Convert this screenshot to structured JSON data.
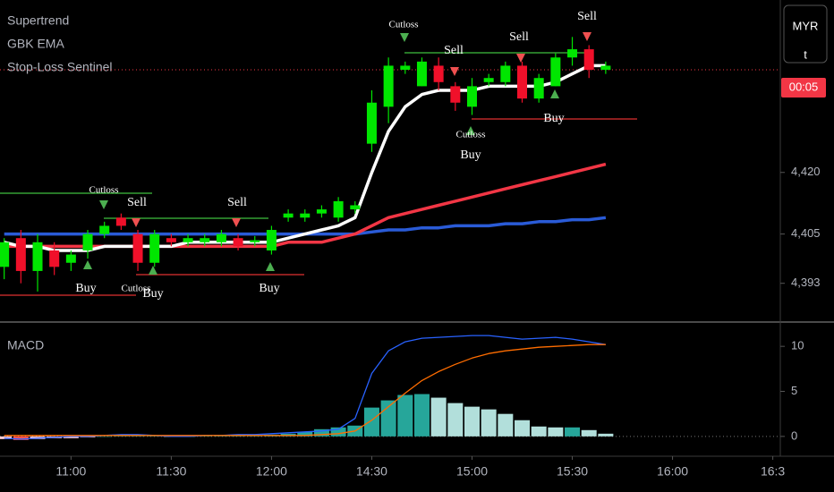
{
  "chart_data": [
    {
      "type": "candlestick",
      "legend": [
        "Supertrend",
        "GBK EMA",
        "Stop-Loss Sentinel"
      ],
      "open": [
        4397,
        4404,
        4396,
        4401,
        4398,
        4401,
        4405,
        4409,
        4405,
        4398,
        4404,
        4403,
        4403,
        4403,
        4404,
        4403,
        4401,
        4409,
        4409,
        4410,
        4409,
        4411,
        4427,
        4436,
        4445,
        4441,
        4446,
        4441,
        4436,
        4442,
        4442,
        4446,
        4438,
        4441,
        4448,
        4450,
        4445
      ],
      "close": [
        4403,
        4396,
        4403,
        4397,
        4400,
        4405,
        4407,
        4407,
        4398,
        4405,
        4403,
        4404,
        4404,
        4405,
        4402,
        4403.5,
        4406,
        4410,
        4410,
        4411,
        4413,
        4412,
        4437,
        4446,
        4446,
        4447,
        4442,
        4437,
        4441,
        4443,
        4446,
        4438,
        4443,
        4448,
        4450,
        4445,
        4446
      ],
      "high": [
        4404,
        4406,
        4405,
        4403,
        4401,
        4406,
        4408,
        4410,
        4406,
        4406,
        4405,
        4405,
        4405,
        4406,
        4405,
        4404.5,
        4407,
        4411,
        4411,
        4412,
        4414,
        4413,
        4440,
        4448,
        4447,
        4448,
        4448,
        4442,
        4443,
        4444,
        4447,
        4447,
        4444,
        4449,
        4453,
        4451,
        4447
      ],
      "low": [
        4394,
        4393,
        4391,
        4395,
        4396,
        4399,
        4404,
        4406,
        4396,
        4397,
        4402,
        4402,
        4402,
        4402,
        4401,
        4402,
        4400,
        4408,
        4408,
        4409,
        4408,
        4410,
        4425,
        4432,
        4444,
        4441,
        4440,
        4435,
        4434,
        4441,
        4441,
        4437,
        4437,
        4441,
        4446,
        4443,
        4444
      ],
      "series": [
        {
          "color": "#ffffff",
          "values": [
            4403,
            4402,
            4402,
            4401,
            4401,
            4401,
            4402,
            4402,
            4402,
            4402,
            4402,
            4403,
            4403,
            4403,
            4403,
            4403,
            4403,
            4404,
            4405,
            4406,
            4407,
            4409,
            4420,
            4430,
            4436,
            4439,
            4440,
            4440,
            4440,
            4441,
            4441,
            4441,
            4441,
            4442,
            4444,
            4446,
            4446
          ]
        },
        {
          "color": "#f23645",
          "values": [
            4402,
            4402,
            4402,
            4402,
            4402,
            4402,
            4402,
            4402,
            4402,
            4402,
            4402,
            4402,
            4402,
            4402,
            4402,
            4402,
            4402,
            4403,
            4403,
            4403,
            4404,
            4405,
            4407,
            4409,
            4410,
            4411,
            4412,
            4413,
            4414,
            4415,
            4416,
            4417,
            4418,
            4419,
            4420,
            4421,
            4422
          ]
        },
        {
          "color": "#2a5bd7",
          "values": [
            4405,
            4405,
            4405,
            4405,
            4405,
            4405,
            4405,
            4405,
            4405,
            4405,
            4405,
            4405,
            4405,
            4405,
            4405,
            4405,
            4405,
            4405,
            4405,
            4405,
            4405,
            4405,
            4405.5,
            4406,
            4406,
            4406.5,
            4406.5,
            4407,
            4407,
            4407,
            4407.5,
            4407.5,
            4408,
            4408,
            4408.5,
            4408.5,
            4409
          ]
        }
      ],
      "up_color": "#00e600",
      "down_color": "#f0102a",
      "price_line": 4445,
      "currency": "MYR",
      "currency_sub": "t",
      "countdown": "00:05",
      "annotations": [
        "Cutloss",
        "Sell",
        "Sell",
        "Sell",
        "Cutloss",
        "Buy",
        "Buy",
        "Cutloss",
        "Sell",
        "Sell",
        "Buy",
        "Cutloss",
        "Buy",
        "Buy"
      ],
      "xlim": [
        -0.25,
        46.45
      ],
      "ylim": [
        4384,
        4462
      ],
      "yticks": [
        {
          "value": 4420,
          "label": "4,420"
        },
        {
          "value": 4405,
          "label": "4,405"
        },
        {
          "value": 4393,
          "label": "4,393"
        }
      ]
    },
    {
      "type": "macd",
      "title": "MACD",
      "histogram": [
        -0.3,
        -0.4,
        -0.3,
        -0.2,
        -0.2,
        -0.1,
        0,
        0.1,
        0.1,
        0.1,
        0,
        0,
        0.1,
        0.1,
        0.1,
        0.1,
        0.2,
        0.3,
        0.5,
        0.8,
        1.0,
        1.2,
        3.2,
        4.0,
        4.6,
        4.7,
        4.3,
        3.7,
        3.3,
        3.0,
        2.5,
        1.8,
        1.1,
        1.0,
        1.0,
        0.7,
        0.3
      ],
      "colors": {
        "rising": "#26a69a",
        "falling": "#b2dfdb",
        "negative_rising": "#ffcdd2",
        "negative_falling": "#ff5252"
      },
      "series": [
        {
          "color": "#2962ff",
          "values": [
            -0.2,
            -0.3,
            -0.2,
            -0.1,
            0,
            0,
            0.1,
            0.2,
            0.2,
            0.1,
            0,
            0,
            0.1,
            0.1,
            0.2,
            0.2,
            0.3,
            0.4,
            0.5,
            0.6,
            0.8,
            2,
            7,
            9.5,
            10.5,
            10.9,
            11,
            11.1,
            11.2,
            11.2,
            11,
            10.8,
            10.9,
            11,
            10.8,
            10.5,
            10.2
          ]
        },
        {
          "color": "#ff6d00",
          "values": [
            0.1,
            0.1,
            0.1,
            0.1,
            0.1,
            0.1,
            0.1,
            0.1,
            0.1,
            0.1,
            0.1,
            0.1,
            0.1,
            0.1,
            0.1,
            0.1,
            0.1,
            0.1,
            0.1,
            0.2,
            0.3,
            0.6,
            1.8,
            3.3,
            4.8,
            6.2,
            7.2,
            8,
            8.7,
            9.2,
            9.5,
            9.7,
            9.9,
            10,
            10.1,
            10.2,
            10.2
          ]
        }
      ],
      "xlim": [
        -0.25,
        46.45
      ],
      "ylim": [
        -2.2,
        12.5
      ],
      "yticks": [
        0,
        5,
        10
      ],
      "xticks": [
        {
          "value": 4,
          "label": "11:00"
        },
        {
          "value": 10,
          "label": "11:30"
        },
        {
          "value": 16,
          "label": "12:00"
        },
        {
          "value": 22,
          "label": "14:30"
        },
        {
          "value": 28,
          "label": "15:00"
        },
        {
          "value": 34,
          "label": "15:30"
        },
        {
          "value": 40,
          "label": "16:00"
        },
        {
          "value": 46,
          "label": "16:3"
        }
      ]
    }
  ]
}
